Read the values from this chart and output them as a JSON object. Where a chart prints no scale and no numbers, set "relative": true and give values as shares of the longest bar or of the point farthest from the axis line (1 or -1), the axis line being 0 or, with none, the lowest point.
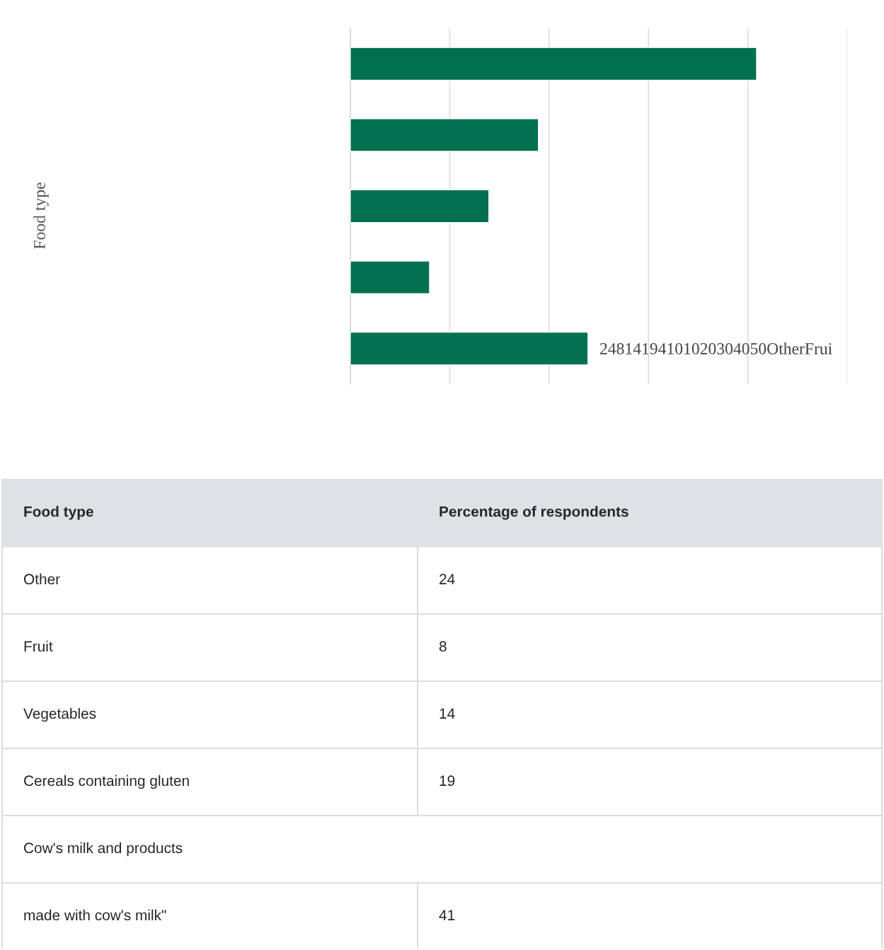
{
  "chart_data": [
    {
      "type": "bar",
      "orientation": "horizontal",
      "relative": true,
      "ylabel": "Food type",
      "categories": [
        null,
        null,
        null,
        null,
        null
      ],
      "values": [
        1,
        0.463,
        0.341,
        0.195,
        0.585
      ],
      "color": "#007050",
      "grid": "x",
      "annotations": [
        "24814194101020304050OtherFrui"
      ]
    },
    {
      "type": "other",
      "annotations": [
        "Food type\tPercentage of respondents",
        "Other\t24",
        "Fruit\t8",
        "Vegetables\t14",
        "Cereals containing gluten\t19",
        "Cow's milk and products",
        "made with cow's milk\"\t41"
      ]
    }
  ]
}
